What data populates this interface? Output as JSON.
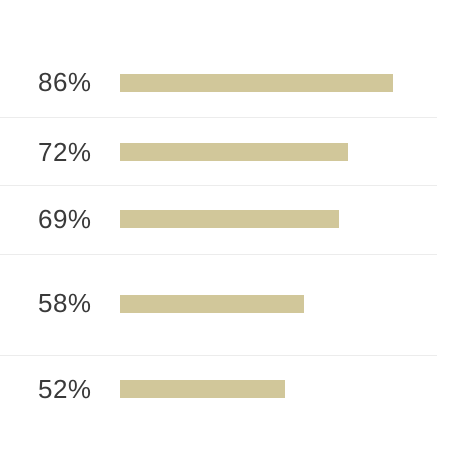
{
  "stats": {
    "bar_color": "#d1c79a",
    "rows": [
      {
        "label": "86%",
        "value": 0.86
      },
      {
        "label": "72%",
        "value": 0.72
      },
      {
        "label": "69%",
        "value": 0.69
      },
      {
        "label": "58%",
        "value": 0.58
      },
      {
        "label": "52%",
        "value": 0.52
      }
    ]
  }
}
